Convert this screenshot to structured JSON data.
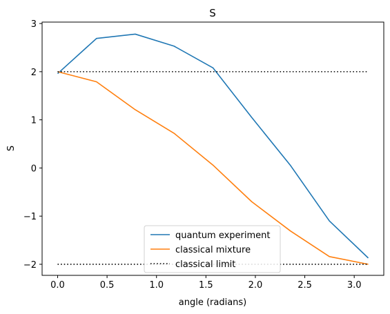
{
  "chart_data": {
    "type": "line",
    "title": "S",
    "xlabel": "angle (radians)",
    "ylabel": "S",
    "xlim": [
      -0.157,
      3.299
    ],
    "ylim": [
      -2.23,
      3.03
    ],
    "xticks": [
      0.0,
      0.5,
      1.0,
      1.5,
      2.0,
      2.5,
      3.0
    ],
    "xtick_labels": [
      "0.0",
      "0.5",
      "1.0",
      "1.5",
      "2.0",
      "2.5",
      "3.0"
    ],
    "yticks": [
      -2,
      -1,
      0,
      1,
      2,
      3
    ],
    "ytick_labels": [
      "−2",
      "−1",
      "0",
      "1",
      "2",
      "3"
    ],
    "grid": false,
    "legend_position": "lower-center",
    "series": [
      {
        "name": "quantum experiment",
        "color": "#1f77b4",
        "style": "solid",
        "x": [
          0.0,
          0.393,
          0.785,
          1.178,
          1.571,
          1.963,
          2.356,
          2.749,
          3.142
        ],
        "y": [
          1.96,
          2.69,
          2.78,
          2.53,
          2.08,
          1.05,
          0.05,
          -1.1,
          -1.87
        ]
      },
      {
        "name": "classical mixture",
        "color": "#ff7f0e",
        "style": "solid",
        "x": [
          0.0,
          0.393,
          0.785,
          1.178,
          1.571,
          1.963,
          2.356,
          2.749,
          3.142
        ],
        "y": [
          2.0,
          1.79,
          1.21,
          0.72,
          0.06,
          -0.7,
          -1.31,
          -1.84,
          -2.0
        ]
      },
      {
        "name": "classical limit",
        "color": "#000000",
        "style": "dotted",
        "segments": [
          {
            "x": [
              0.0,
              3.142
            ],
            "y": [
              2,
              2
            ]
          },
          {
            "x": [
              0.0,
              3.142
            ],
            "y": [
              -2,
              -2
            ]
          }
        ]
      }
    ]
  }
}
